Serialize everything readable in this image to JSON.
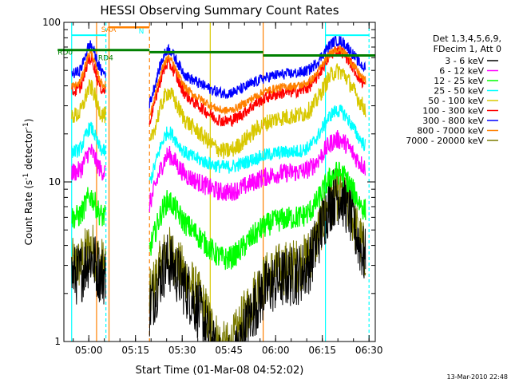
{
  "chart_data": {
    "type": "line",
    "title": "HESSI Observing Summary Count Rates",
    "xlabel": "Start Time (01-Mar-08 04:52:02)",
    "ylabel_main": "Count Rate (s",
    "ylabel_sup": "-1",
    "ylabel_tail": " detector",
    "ylabel_sup2": "-1",
    "ylabel_end": ")",
    "y_scale": "log",
    "ylim": [
      1,
      100
    ],
    "xlim": [
      "04:52:02",
      "06:32:00"
    ],
    "x_ticks": [
      "05:00",
      "05:15",
      "05:30",
      "05:45",
      "06:00",
      "06:15",
      "06:30"
    ],
    "x_tick_minutes": [
      8,
      23,
      38,
      53,
      68,
      83,
      98
    ],
    "y_ticks": [
      "1",
      "10",
      "100"
    ],
    "y_tick_values": [
      1,
      10,
      100
    ],
    "legend_placement": "right",
    "legend_header": [
      "Det 1,3,4,5,6,9,",
      "FDecim 1, Att 0"
    ],
    "series": [
      {
        "name": "3 - 6 keV",
        "color": "#000000"
      },
      {
        "name": "6 - 12 keV",
        "color": "#ff00ff"
      },
      {
        "name": "12 - 25 keV",
        "color": "#00ff00"
      },
      {
        "name": "25 - 50 keV",
        "color": "#00ffff"
      },
      {
        "name": "50 - 100 keV",
        "color": "#d8c800"
      },
      {
        "name": "100 - 300 keV",
        "color": "#ff0000"
      },
      {
        "name": "300 - 800 keV",
        "color": "#0000ff"
      },
      {
        "name": "800 - 7000 keV",
        "color": "#ff8000"
      },
      {
        "name": "7000 - 20000 keV",
        "color": "#7a7a00"
      }
    ],
    "annotations": [
      {
        "text": "RD0",
        "x_min": -2,
        "y": 65,
        "color": "#008000"
      },
      {
        "text": "RD4",
        "x_min": 11,
        "y": 60,
        "color": "#008000"
      },
      {
        "text": "SAA",
        "x_min": 12,
        "y": 90,
        "color": "#ff8000"
      },
      {
        "text": "N",
        "x_min": 24,
        "y": 88,
        "color": "#00ffff"
      }
    ],
    "timestamp": "13-Mar-2010 22:48"
  }
}
